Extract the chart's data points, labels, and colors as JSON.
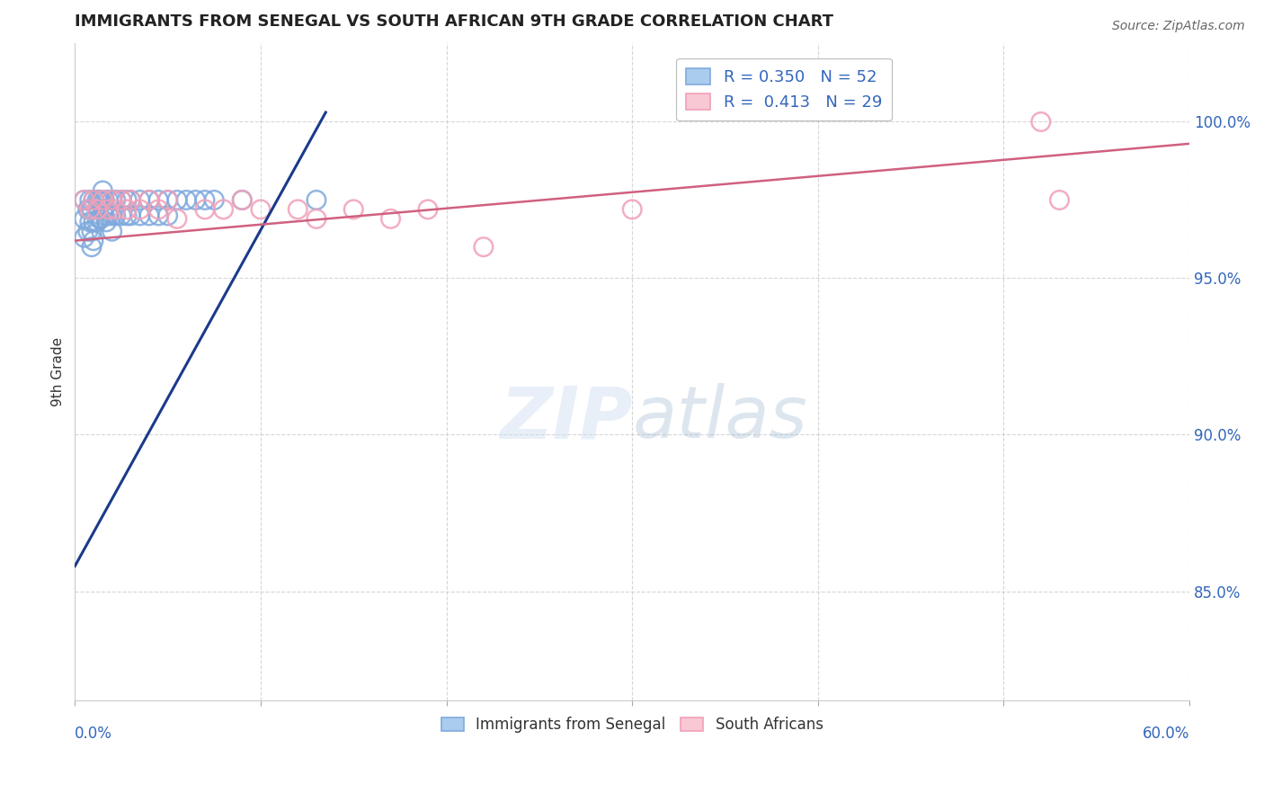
{
  "title": "IMMIGRANTS FROM SENEGAL VS SOUTH AFRICAN 9TH GRADE CORRELATION CHART",
  "source": "Source: ZipAtlas.com",
  "ylabel": "9th Grade",
  "ytick_labels": [
    "100.0%",
    "95.0%",
    "90.0%",
    "85.0%"
  ],
  "ytick_values": [
    1.0,
    0.95,
    0.9,
    0.85
  ],
  "xmin": 0.0,
  "xmax": 0.6,
  "ymin": 0.815,
  "ymax": 1.025,
  "R_blue": 0.35,
  "N_blue": 52,
  "R_pink": 0.413,
  "N_pink": 29,
  "legend_label_blue": "Immigrants from Senegal",
  "legend_label_pink": "South Africans",
  "blue_color": "#7faadd",
  "pink_color": "#f0a0b8",
  "blue_line_color": "#1a3a8c",
  "pink_line_color": "#d06080",
  "blue_scatter_x": [
    0.005,
    0.005,
    0.005,
    0.007,
    0.007,
    0.008,
    0.008,
    0.009,
    0.009,
    0.009,
    0.01,
    0.01,
    0.01,
    0.012,
    0.012,
    0.013,
    0.013,
    0.014,
    0.014,
    0.015,
    0.015,
    0.016,
    0.016,
    0.017,
    0.018,
    0.018,
    0.02,
    0.02,
    0.02,
    0.022,
    0.022,
    0.025,
    0.025,
    0.028,
    0.028,
    0.03,
    0.03,
    0.035,
    0.035,
    0.04,
    0.04,
    0.045,
    0.045,
    0.05,
    0.05,
    0.055,
    0.06,
    0.065,
    0.07,
    0.075,
    0.09,
    0.13
  ],
  "blue_scatter_y": [
    0.975,
    0.969,
    0.963,
    0.972,
    0.965,
    0.975,
    0.968,
    0.972,
    0.965,
    0.96,
    0.975,
    0.968,
    0.962,
    0.975,
    0.968,
    0.975,
    0.969,
    0.975,
    0.969,
    0.978,
    0.972,
    0.975,
    0.97,
    0.968,
    0.975,
    0.97,
    0.975,
    0.97,
    0.965,
    0.975,
    0.97,
    0.975,
    0.97,
    0.975,
    0.97,
    0.975,
    0.97,
    0.975,
    0.97,
    0.975,
    0.97,
    0.975,
    0.97,
    0.975,
    0.97,
    0.975,
    0.975,
    0.975,
    0.975,
    0.975,
    0.975,
    0.975
  ],
  "pink_scatter_x": [
    0.005,
    0.008,
    0.01,
    0.012,
    0.015,
    0.018,
    0.02,
    0.022,
    0.025,
    0.028,
    0.03,
    0.035,
    0.04,
    0.045,
    0.05,
    0.055,
    0.07,
    0.08,
    0.09,
    0.1,
    0.12,
    0.13,
    0.15,
    0.17,
    0.19,
    0.22,
    0.3,
    0.52,
    0.53
  ],
  "pink_scatter_y": [
    0.975,
    0.972,
    0.975,
    0.972,
    0.975,
    0.972,
    0.975,
    0.972,
    0.975,
    0.972,
    0.975,
    0.972,
    0.975,
    0.972,
    0.975,
    0.969,
    0.972,
    0.972,
    0.975,
    0.972,
    0.972,
    0.969,
    0.972,
    0.969,
    0.972,
    0.96,
    0.972,
    1.0,
    0.975
  ],
  "blue_line_x0": 0.0,
  "blue_line_x1": 0.135,
  "blue_line_y0": 0.858,
  "blue_line_y1": 1.003,
  "pink_line_x0": 0.0,
  "pink_line_x1": 0.6,
  "pink_line_y0": 0.962,
  "pink_line_y1": 0.993
}
